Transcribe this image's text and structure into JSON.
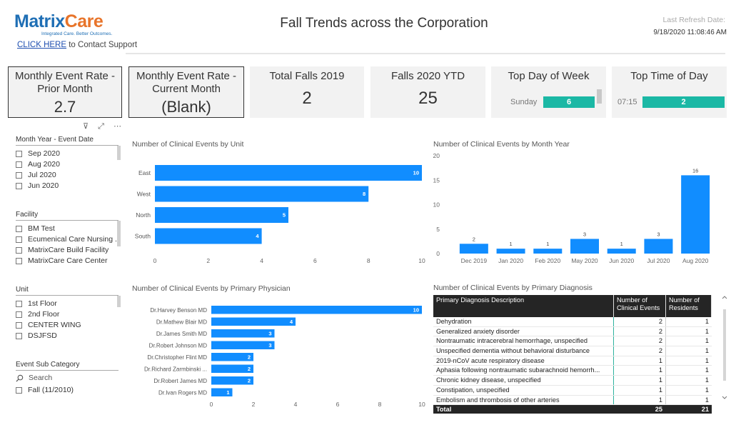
{
  "header": {
    "logo_main_a": "Matrix",
    "logo_main_b": "Care",
    "logo_tagline": "Integrated Care. Better Outcomes.",
    "support_link": "CLICK HERE",
    "support_text": " to Contact Support",
    "title": "Fall Trends across the Corporation",
    "refresh_label": "Last Refresh Date:",
    "refresh_value": "9/18/2020 11:08:46 AM"
  },
  "cards": {
    "prior_title": "Monthly Event Rate - Prior Month",
    "prior_value": "2.7",
    "current_title": "Monthly Event Rate - Current Month",
    "current_value": "(Blank)",
    "falls2019_title": "Total Falls 2019",
    "falls2019_value": "2",
    "falls2020_title": "Falls 2020 YTD",
    "falls2020_value": "25",
    "topday_title": "Top Day of Week",
    "topday_label": "Sunday",
    "topday_value": "6",
    "toptime_title": "Top Time of Day",
    "toptime_label": "07:15",
    "toptime_value": "2"
  },
  "slicer_icons": "⊽ ⤢ ⋯",
  "slicers": {
    "month": {
      "header": "Month Year - Event Date",
      "items": [
        "Sep 2020",
        "Aug 2020",
        "Jul 2020",
        "Jun 2020"
      ]
    },
    "facility": {
      "header": "Facility",
      "items": [
        "BM Test",
        "Ecumenical Care Nursing ...",
        "MatrixCare Build Facility",
        "MatrixCare Care Center"
      ]
    },
    "unit": {
      "header": "Unit",
      "items": [
        "1st Floor",
        "2nd Floor",
        "CENTER WING",
        "DSJFSD"
      ]
    },
    "subcat": {
      "header": "Event Sub Category",
      "search": "Search",
      "items": [
        "Fall (11/2010)"
      ]
    }
  },
  "charts": {
    "unit_title": "Number of Clinical Events by Unit",
    "month_title": "Number of Clinical Events by Month Year",
    "physician_title": "Number of Clinical Events by Primary Physician",
    "diagnosis_title": "Number of Clinical Events by Primary Diagnosis"
  },
  "chart_data": [
    {
      "type": "bar",
      "orientation": "horizontal",
      "title": "Number of Clinical Events by Unit",
      "categories": [
        "East",
        "West",
        "North",
        "South"
      ],
      "values": [
        10,
        8,
        5,
        4
      ],
      "xlim": [
        0,
        10
      ],
      "ticks": [
        0,
        2,
        4,
        6,
        8,
        10
      ],
      "color": "#118dff"
    },
    {
      "type": "bar",
      "orientation": "vertical",
      "title": "Number of Clinical Events by Month Year",
      "categories": [
        "Dec 2019",
        "Jan 2020",
        "Feb 2020",
        "May 2020",
        "Jun 2020",
        "Jul 2020",
        "Aug 2020"
      ],
      "values": [
        2,
        1,
        1,
        3,
        1,
        3,
        16
      ],
      "ylim": [
        0,
        20
      ],
      "ticks": [
        0,
        5,
        10,
        15,
        20
      ],
      "color": "#118dff"
    },
    {
      "type": "bar",
      "orientation": "horizontal",
      "title": "Number of Clinical Events by Primary Physician",
      "categories": [
        "Dr.Harvey Benson MD",
        "Dr.Mathew Blair MD",
        "Dr.James Smith MD",
        "Dr.Robert Johnson MD",
        "Dr.Christopher Flint MD",
        "Dr.Richard Zarmbinski ...",
        "Dr.Robert James MD",
        "Dr.Ivan Rogers MD"
      ],
      "values": [
        10,
        4,
        3,
        3,
        2,
        2,
        2,
        1
      ],
      "xlim": [
        0,
        10
      ],
      "ticks": [
        0,
        2,
        4,
        6,
        8,
        10
      ],
      "color": "#118dff"
    },
    {
      "type": "table",
      "title": "Number of Clinical Events by Primary Diagnosis",
      "columns": [
        "Primary Diagnosis Description",
        "Number of Clinical Events",
        "Number of Residents"
      ],
      "rows": [
        [
          "Dehydration",
          "2",
          "1"
        ],
        [
          "Generalized anxiety disorder",
          "2",
          "1"
        ],
        [
          "Nontraumatic intracerebral hemorrhage, unspecified",
          "2",
          "1"
        ],
        [
          "Unspecified dementia without behavioral disturbance",
          "2",
          "1"
        ],
        [
          "2019-nCoV acute respiratory disease",
          "1",
          "1"
        ],
        [
          "Aphasia following nontraumatic subarachnoid hemorrh...",
          "1",
          "1"
        ],
        [
          "Chronic kidney disease, unspecified",
          "1",
          "1"
        ],
        [
          "Constipation, unspecified",
          "1",
          "1"
        ],
        [
          "Embolism and thrombosis of other arteries",
          "1",
          "1"
        ]
      ],
      "total": [
        "Total",
        "25",
        "21"
      ]
    }
  ]
}
